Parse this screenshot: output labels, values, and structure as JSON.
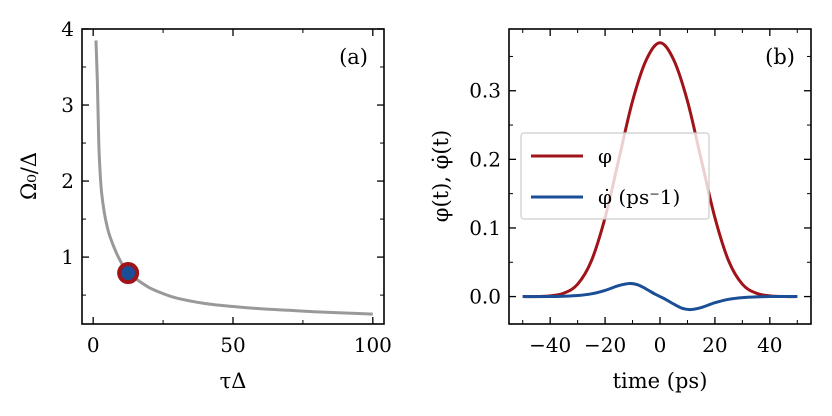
{
  "chart_data": [
    {
      "type": "line",
      "panel_label": "(a)",
      "xlabel": "τΔ",
      "ylabel": "Ω₀/Δ",
      "xlim": [
        -4,
        104
      ],
      "ylim": [
        0.12,
        4.0
      ],
      "xticks": [
        0,
        50,
        100
      ],
      "xtick_labels": [
        "0",
        "50",
        "100"
      ],
      "yticks": [
        1,
        2,
        3,
        4
      ],
      "ytick_labels": [
        "1",
        "2",
        "3",
        "4"
      ],
      "grid": false,
      "series": [
        {
          "color": "#999999",
          "x": [
            1,
            1.5,
            2,
            2.5,
            3,
            4,
            5,
            6,
            8,
            10,
            12.5,
            15,
            20,
            25,
            30,
            40,
            50,
            60,
            70,
            80,
            90,
            100
          ],
          "y": [
            3.85,
            3.3,
            2.5,
            2.1,
            1.85,
            1.58,
            1.4,
            1.27,
            1.08,
            0.93,
            0.79,
            0.72,
            0.6,
            0.52,
            0.46,
            0.39,
            0.35,
            0.32,
            0.3,
            0.28,
            0.265,
            0.25
          ]
        }
      ],
      "marker": {
        "x": 12.5,
        "y": 0.79,
        "fill": "#1a4e96",
        "edge": "#a01318"
      }
    },
    {
      "type": "line",
      "panel_label": "(b)",
      "xlabel": "time (ps)",
      "ylabel": "φ(t), φ̇(t)",
      "xlim": [
        -55,
        55
      ],
      "ylim": [
        -0.04,
        0.39
      ],
      "xticks": [
        -40,
        -20,
        0,
        20,
        40
      ],
      "xtick_labels": [
        "−40",
        "−20",
        "0",
        "20",
        "40"
      ],
      "yticks": [
        0.0,
        0.1,
        0.2,
        0.3
      ],
      "ytick_labels": [
        "0.0",
        "0.1",
        "0.2",
        "0.3"
      ],
      "grid": false,
      "legend_position": "center-left",
      "series": [
        {
          "name": "φ",
          "color": "#a01318",
          "x": [
            -50,
            -45,
            -40,
            -35,
            -30,
            -25,
            -20,
            -15,
            -10,
            -5,
            0,
            5,
            10,
            15,
            20,
            25,
            30,
            35,
            40,
            45,
            50
          ],
          "y": [
            0.0,
            0.0,
            0.001,
            0.005,
            0.018,
            0.052,
            0.115,
            0.2,
            0.285,
            0.345,
            0.37,
            0.345,
            0.285,
            0.2,
            0.115,
            0.052,
            0.018,
            0.005,
            0.001,
            0.0,
            0.0
          ]
        },
        {
          "name": "φ̇ (ps⁻1)",
          "color": "#1a4e96",
          "x": [
            -50,
            -40,
            -35,
            -30,
            -25,
            -20,
            -15,
            -11,
            -8,
            -5,
            -2,
            0,
            2,
            5,
            8,
            11,
            15,
            20,
            25,
            30,
            35,
            40,
            50
          ],
          "y": [
            0.0,
            0.0,
            0.0005,
            0.0015,
            0.004,
            0.009,
            0.016,
            0.019,
            0.017,
            0.011,
            0.004,
            0.0,
            -0.004,
            -0.011,
            -0.017,
            -0.019,
            -0.016,
            -0.009,
            -0.004,
            -0.0015,
            -0.0005,
            0.0,
            0.0
          ]
        }
      ]
    }
  ]
}
